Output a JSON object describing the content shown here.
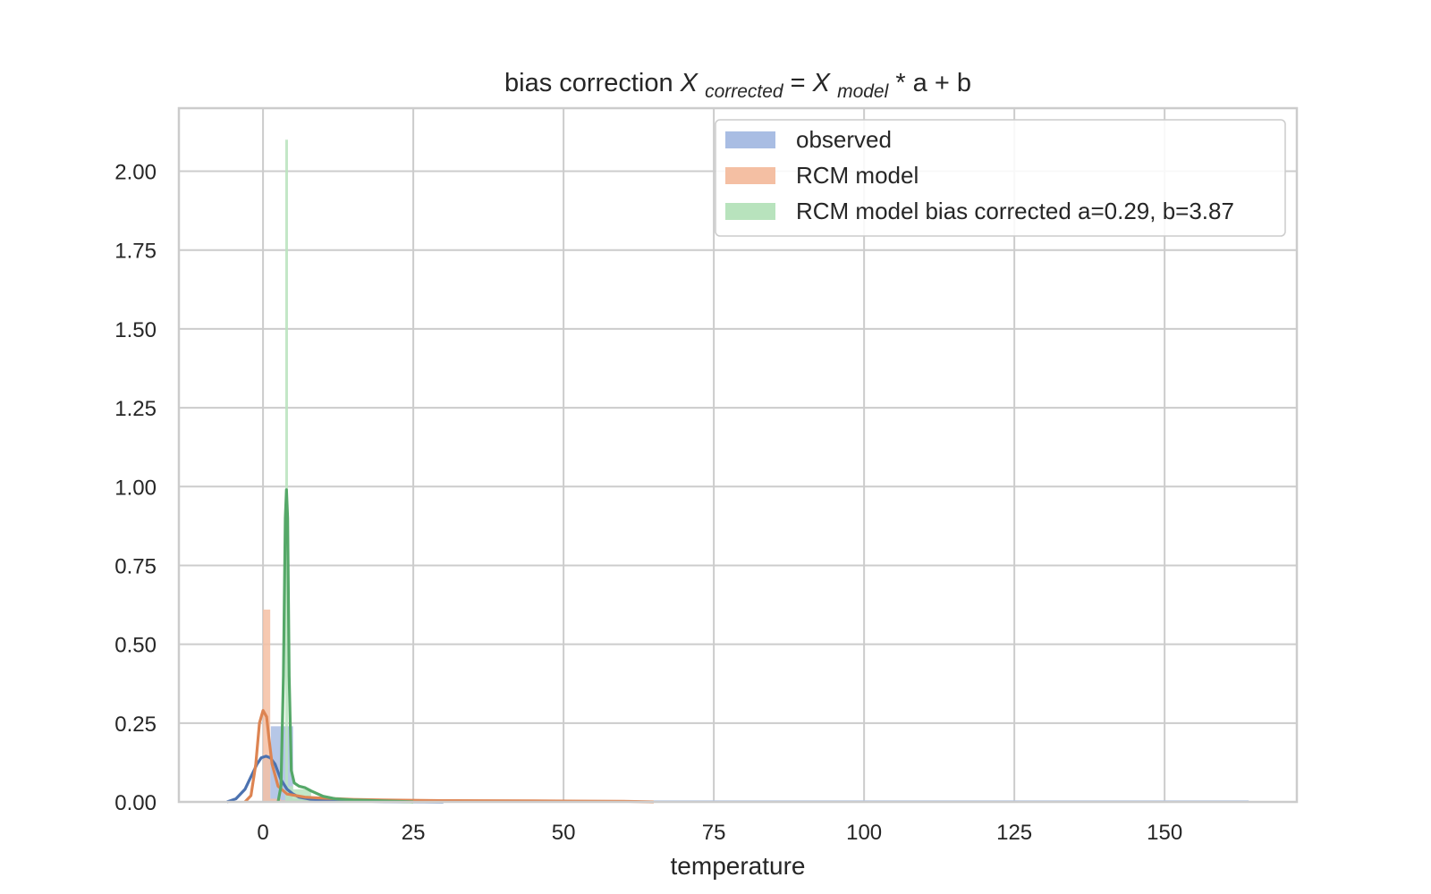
{
  "chart_data": {
    "type": "histogram",
    "title": {
      "prefix": "bias correction ",
      "var1": "X",
      "var1_sub": "corrected",
      "equals": " = ",
      "var2": "X",
      "var2_sub": "model",
      "suffix": " * a + b"
    },
    "xlabel": "temperature",
    "ylabel": "",
    "xlim": [
      -14,
      172
    ],
    "ylim": [
      0,
      2.2
    ],
    "xticks": [
      0,
      25,
      50,
      75,
      100,
      125,
      150
    ],
    "yticks": [
      0.0,
      0.25,
      0.5,
      0.75,
      1.0,
      1.25,
      1.5,
      1.75,
      2.0
    ],
    "xtick_labels": [
      "0",
      "25",
      "50",
      "75",
      "100",
      "125",
      "150"
    ],
    "ytick_labels": [
      "0.00",
      "0.25",
      "0.50",
      "0.75",
      "1.00",
      "1.25",
      "1.50",
      "1.75",
      "2.00"
    ],
    "grid": true,
    "legend_position": "top-right",
    "series": [
      {
        "name": "observed",
        "color": "#4c72b0",
        "bar_color": "#a9bde3",
        "bins": [
          [
            0,
            1.3,
            0.14
          ],
          [
            1.3,
            5.0,
            0.24
          ],
          [
            5.0,
            10,
            0.01
          ],
          [
            10,
            65,
            0.003
          ],
          [
            65,
            164,
            0.005
          ]
        ],
        "kde": [
          [
            -6,
            0.0
          ],
          [
            -4.5,
            0.01
          ],
          [
            -3,
            0.04
          ],
          [
            -2,
            0.08
          ],
          [
            -1,
            0.12
          ],
          [
            -0.3,
            0.14
          ],
          [
            0.5,
            0.145
          ],
          [
            1.2,
            0.14
          ],
          [
            2,
            0.12
          ],
          [
            3,
            0.07
          ],
          [
            4,
            0.04
          ],
          [
            5,
            0.025
          ],
          [
            6,
            0.015
          ],
          [
            8,
            0.008
          ],
          [
            12,
            0.004
          ],
          [
            20,
            0.001
          ],
          [
            30,
            0.0
          ]
        ]
      },
      {
        "name": "RCM model",
        "color": "#dd8452",
        "bar_color": "#f4bfa3",
        "bins": [
          [
            0,
            1.2,
            0.61
          ],
          [
            1.2,
            3,
            0.01
          ],
          [
            3,
            30,
            0.005
          ],
          [
            30,
            65,
            0.002
          ]
        ],
        "kde": [
          [
            -3,
            0.0
          ],
          [
            -2,
            0.02
          ],
          [
            -1.2,
            0.12
          ],
          [
            -0.6,
            0.25
          ],
          [
            0,
            0.29
          ],
          [
            0.6,
            0.27
          ],
          [
            1,
            0.2
          ],
          [
            1.5,
            0.12
          ],
          [
            2.5,
            0.05
          ],
          [
            4,
            0.025
          ],
          [
            7,
            0.015
          ],
          [
            10,
            0.012
          ],
          [
            15,
            0.008
          ],
          [
            20,
            0.006
          ],
          [
            30,
            0.004
          ],
          [
            45,
            0.003
          ],
          [
            60,
            0.002
          ],
          [
            65,
            0.0
          ]
        ]
      },
      {
        "name": "RCM model bias corrected a=0.29, b=3.87",
        "color": "#55a868",
        "bar_color": "#b8e3bd",
        "bins": [
          [
            3.7,
            4.15,
            2.1
          ],
          [
            4.15,
            5,
            0.05
          ],
          [
            5,
            8,
            0.04
          ],
          [
            8,
            12,
            0.01
          ]
        ],
        "kde": [
          [
            2.5,
            0.0
          ],
          [
            3.0,
            0.05
          ],
          [
            3.4,
            0.4
          ],
          [
            3.7,
            0.9
          ],
          [
            3.9,
            0.99
          ],
          [
            4.1,
            0.9
          ],
          [
            4.35,
            0.4
          ],
          [
            4.7,
            0.1
          ],
          [
            5.2,
            0.06
          ],
          [
            6,
            0.05
          ],
          [
            7,
            0.045
          ],
          [
            8,
            0.035
          ],
          [
            10,
            0.018
          ],
          [
            12,
            0.01
          ],
          [
            15,
            0.006
          ],
          [
            20,
            0.003
          ],
          [
            25,
            0.0
          ]
        ]
      }
    ]
  }
}
